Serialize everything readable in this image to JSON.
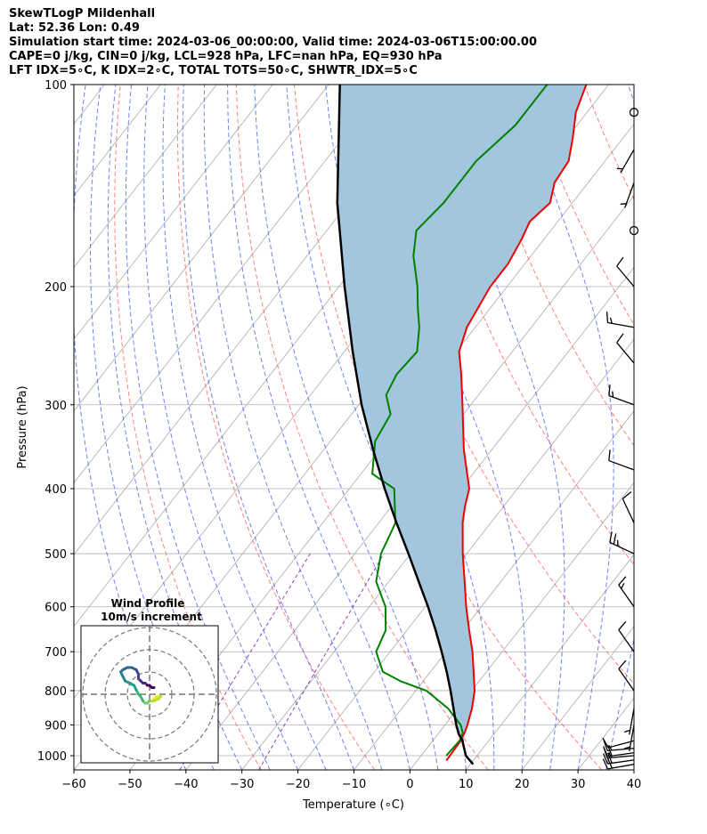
{
  "header": {
    "title": "SkewTLogP Mildenhall",
    "latlon": "Lat: 52.36   Lon: 0.49",
    "times": "Simulation start time: 2024-03-06_00:00:00, Valid time: 2024-03-06T15:00:00.00",
    "cape_line": "CAPE=0 j/kg, CIN=0 j/kg, LCL=928 hPa, LFC=nan hPa, EQ=930 hPa",
    "indices_line": "LFT IDX=5∘C, K IDX=2∘C, TOTAL TOTS=50∘C, SHWTR_IDX=5∘C"
  },
  "chart_data": {
    "type": "skewt",
    "xlabel": "Temperature (∘C)",
    "ylabel": "Pressure (hPa)",
    "xlim": [
      -60,
      40
    ],
    "plim": [
      1050,
      100
    ],
    "x_ticks": [
      -60,
      -50,
      -40,
      -30,
      -20,
      -10,
      0,
      10,
      20,
      30,
      40
    ],
    "p_ticks": [
      100,
      200,
      300,
      400,
      500,
      600,
      700,
      800,
      900,
      1000
    ],
    "grid": true,
    "colors": {
      "temperature": "#ee0000",
      "dewpoint": "#008000",
      "parcel": "#000000",
      "cape_fill": "#a3c6df",
      "dry_adiabat": "#ff5555",
      "moist_adiabat": "#4455ee",
      "mixing_ratio": "#8844bb",
      "isotherm": "#aaaaaa"
    },
    "temperature_profile": [
      {
        "p": 1017,
        "t": 5.2
      },
      {
        "p": 950,
        "t": 5.0
      },
      {
        "p": 925,
        "t": 4.6
      },
      {
        "p": 900,
        "t": 4.0
      },
      {
        "p": 850,
        "t": 2.5
      },
      {
        "p": 800,
        "t": 0.5
      },
      {
        "p": 750,
        "t": -2.3
      },
      {
        "p": 700,
        "t": -5.3
      },
      {
        "p": 650,
        "t": -8.9
      },
      {
        "p": 600,
        "t": -12.7
      },
      {
        "p": 550,
        "t": -16.5
      },
      {
        "p": 500,
        "t": -20.7
      },
      {
        "p": 450,
        "t": -25.0
      },
      {
        "p": 425,
        "t": -26.9
      },
      {
        "p": 400,
        "t": -28.6
      },
      {
        "p": 350,
        "t": -35.0
      },
      {
        "p": 300,
        "t": -41.5
      },
      {
        "p": 270,
        "t": -46.0
      },
      {
        "p": 250,
        "t": -49.5
      },
      {
        "p": 230,
        "t": -51.5
      },
      {
        "p": 200,
        "t": -53.0
      },
      {
        "p": 185,
        "t": -53.0
      },
      {
        "p": 170,
        "t": -54.0
      },
      {
        "p": 160,
        "t": -55.0
      },
      {
        "p": 150,
        "t": -54.0
      },
      {
        "p": 140,
        "t": -56.0
      },
      {
        "p": 130,
        "t": -56.5
      },
      {
        "p": 120,
        "t": -59.0
      },
      {
        "p": 110,
        "t": -62.0
      },
      {
        "p": 100,
        "t": -64.0
      }
    ],
    "dewpoint_profile": [
      {
        "p": 1000,
        "t": 4.5
      },
      {
        "p": 950,
        "t": 4.8
      },
      {
        "p": 925,
        "t": 4.3
      },
      {
        "p": 900,
        "t": 2.8
      },
      {
        "p": 850,
        "t": -1.8
      },
      {
        "p": 800,
        "t": -8.1
      },
      {
        "p": 775,
        "t": -13.9
      },
      {
        "p": 750,
        "t": -18.5
      },
      {
        "p": 700,
        "t": -22.5
      },
      {
        "p": 650,
        "t": -23.8
      },
      {
        "p": 600,
        "t": -27.1
      },
      {
        "p": 550,
        "t": -32.3
      },
      {
        "p": 500,
        "t": -35.3
      },
      {
        "p": 450,
        "t": -37.0
      },
      {
        "p": 400,
        "t": -42.0
      },
      {
        "p": 380,
        "t": -48.0
      },
      {
        "p": 340,
        "t": -52.0
      },
      {
        "p": 310,
        "t": -53.0
      },
      {
        "p": 290,
        "t": -56.5
      },
      {
        "p": 270,
        "t": -57.5
      },
      {
        "p": 250,
        "t": -57.0
      },
      {
        "p": 230,
        "t": -60.0
      },
      {
        "p": 215,
        "t": -63.0
      },
      {
        "p": 200,
        "t": -66.0
      },
      {
        "p": 180,
        "t": -71.0
      },
      {
        "p": 165,
        "t": -74.0
      },
      {
        "p": 150,
        "t": -73.0
      },
      {
        "p": 130,
        "t": -73.0
      },
      {
        "p": 115,
        "t": -71.0
      },
      {
        "p": 100,
        "t": -71.0
      }
    ],
    "parcel_profile": [
      {
        "p": 1030,
        "t": 10.5
      },
      {
        "p": 1000,
        "t": 8.0
      },
      {
        "p": 950,
        "t": 5.3
      },
      {
        "p": 928,
        "t": 3.7
      },
      {
        "p": 900,
        "t": 2.0
      },
      {
        "p": 850,
        "t": -0.8
      },
      {
        "p": 800,
        "t": -3.8
      },
      {
        "p": 750,
        "t": -7.1
      },
      {
        "p": 700,
        "t": -10.8
      },
      {
        "p": 650,
        "t": -14.9
      },
      {
        "p": 600,
        "t": -19.5
      },
      {
        "p": 550,
        "t": -24.7
      },
      {
        "p": 500,
        "t": -30.4
      },
      {
        "p": 450,
        "t": -36.8
      },
      {
        "p": 400,
        "t": -43.7
      },
      {
        "p": 350,
        "t": -51.2
      },
      {
        "p": 300,
        "t": -59.5
      },
      {
        "p": 250,
        "t": -68.5
      },
      {
        "p": 200,
        "t": -79.0
      },
      {
        "p": 150,
        "t": -92.0
      },
      {
        "p": 100,
        "t": -108.0
      }
    ],
    "wind_barbs": [
      {
        "p": 1030,
        "speed_kt": 20,
        "dir": 260
      },
      {
        "p": 1015,
        "speed_kt": 20,
        "dir": 262
      },
      {
        "p": 1000,
        "speed_kt": 15,
        "dir": 265
      },
      {
        "p": 990,
        "speed_kt": 20,
        "dir": 262
      },
      {
        "p": 975,
        "speed_kt": 15,
        "dir": 265
      },
      {
        "p": 950,
        "speed_kt": 10,
        "dir": 255
      },
      {
        "p": 900,
        "speed_kt": 5,
        "dir": 190
      },
      {
        "p": 850,
        "speed_kt": 5,
        "dir": 190
      },
      {
        "p": 800,
        "speed_kt": 10,
        "dir": 325
      },
      {
        "p": 700,
        "speed_kt": 10,
        "dir": 325
      },
      {
        "p": 600,
        "speed_kt": 15,
        "dir": 325
      },
      {
        "p": 500,
        "speed_kt": 25,
        "dir": 295
      },
      {
        "p": 450,
        "speed_kt": 10,
        "dir": 335
      },
      {
        "p": 375,
        "speed_kt": 10,
        "dir": 290
      },
      {
        "p": 300,
        "speed_kt": 15,
        "dir": 290
      },
      {
        "p": 260,
        "speed_kt": 10,
        "dir": 320
      },
      {
        "p": 230,
        "speed_kt": 15,
        "dir": 280
      },
      {
        "p": 200,
        "speed_kt": 10,
        "dir": 320
      },
      {
        "p": 165,
        "speed_kt": 0,
        "dir": 0
      },
      {
        "p": 140,
        "speed_kt": 5,
        "dir": 200
      },
      {
        "p": 125,
        "speed_kt": 5,
        "dir": 210
      },
      {
        "p": 110,
        "speed_kt": 0,
        "dir": 0
      }
    ],
    "hodograph": {
      "title": "Wind Profile",
      "subtitle": "10m/s increment",
      "ring_increment_ms": 10,
      "rings": [
        10,
        20,
        30
      ],
      "points_uv": [
        [
          2,
          -2
        ],
        [
          3,
          -1
        ],
        [
          4,
          -1
        ],
        [
          5,
          -1
        ],
        [
          4,
          -2
        ],
        [
          2,
          -3
        ],
        [
          0,
          -3
        ],
        [
          -1,
          -4
        ],
        [
          -2,
          -4
        ],
        [
          -3,
          -3
        ],
        [
          -4,
          -1
        ],
        [
          -5,
          0
        ],
        [
          -6,
          2
        ],
        [
          -7,
          4
        ],
        [
          -9,
          5
        ],
        [
          -11,
          6
        ],
        [
          -12,
          8
        ],
        [
          -13,
          10
        ],
        [
          -12,
          11
        ],
        [
          -10,
          12
        ],
        [
          -8,
          12
        ],
        [
          -6,
          11
        ],
        [
          -5,
          9
        ],
        [
          -5,
          7
        ],
        [
          -4,
          6
        ],
        [
          -3,
          5
        ],
        [
          -2,
          5
        ],
        [
          -1,
          4
        ],
        [
          0,
          4
        ],
        [
          1,
          3
        ],
        [
          2,
          3
        ]
      ]
    }
  }
}
